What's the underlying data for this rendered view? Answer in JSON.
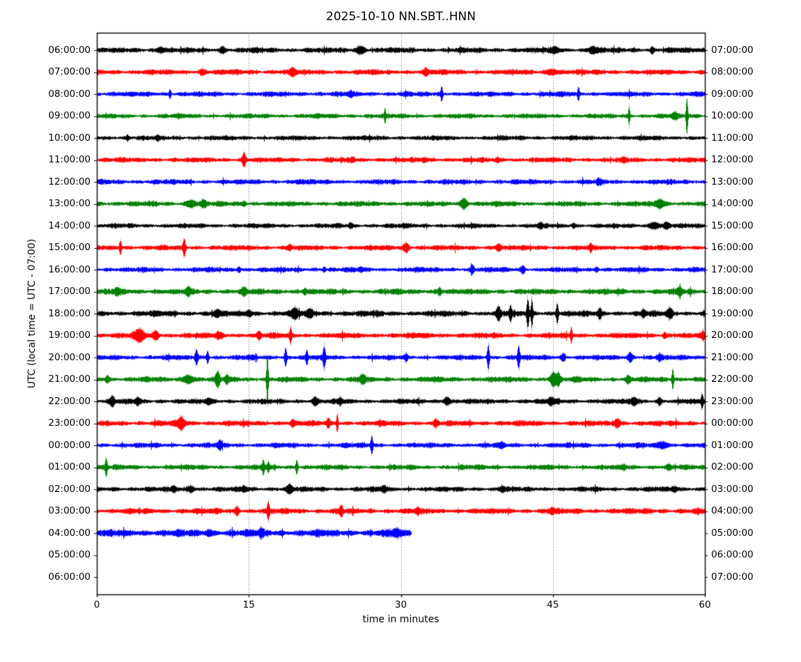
{
  "figure": {
    "title": "2025-10-10 NN.SBT..HNN",
    "xlabel": "time in minutes",
    "ylabel": "UTC (local time = UTC - 07:00)"
  },
  "chart_data": {
    "type": "line",
    "variant": "helicorder-dayplot",
    "title": "2025-10-10 NN.SBT..HNN",
    "date": "2025-10-10",
    "station_id": "NN.SBT..HNN",
    "xlabel": "time in minutes",
    "ylabel": "UTC (local time = UTC - 07:00)",
    "xlim": [
      0,
      60
    ],
    "x_ticks": [
      0,
      15,
      30,
      45,
      60
    ],
    "x_grid_minutes": [
      15,
      30,
      45
    ],
    "grid_style": "dotted-vertical",
    "minutes_per_row": 60,
    "trace_colors_cycle": [
      "#000000",
      "#ff0000",
      "#0000ff",
      "#008000"
    ],
    "rows": [
      {
        "left": "06:00:00",
        "right": "07:00:00",
        "color": "#000000",
        "trace": true,
        "start": 0,
        "end": 60,
        "noise": 3.1,
        "events": [
          [
            6.3,
            3,
            0.4
          ],
          [
            12.4,
            3,
            0.3
          ],
          [
            26.0,
            4,
            0.5
          ],
          [
            45.2,
            3,
            0.4
          ],
          [
            48.9,
            4,
            0.35
          ],
          [
            54.8,
            3,
            0.2
          ]
        ]
      },
      {
        "left": "07:00:00",
        "right": "08:00:00",
        "color": "#ff0000",
        "trace": true,
        "start": 0,
        "end": 60,
        "noise": 3.1,
        "events": [
          [
            10.4,
            3,
            0.3
          ],
          [
            19.3,
            3.5,
            0.3
          ],
          [
            32.4,
            3,
            0.25
          ],
          [
            44.9,
            3,
            0.6
          ]
        ]
      },
      {
        "left": "08:00:00",
        "right": "09:00:00",
        "color": "#0000ff",
        "trace": true,
        "start": 0,
        "end": 60,
        "noise": 2.9,
        "events": [
          [
            7.2,
            5,
            0.12
          ],
          [
            25,
            2,
            0.3
          ],
          [
            34,
            9,
            0.1
          ],
          [
            47.5,
            7,
            0.1
          ]
        ]
      },
      {
        "left": "09:00:00",
        "right": "10:00:00",
        "color": "#008000",
        "trace": true,
        "start": 0,
        "end": 60,
        "noise": 2.7,
        "events": [
          [
            28.4,
            8,
            0.08
          ],
          [
            52.5,
            12,
            0.09
          ],
          [
            57,
            3,
            0.3
          ],
          [
            58.2,
            23,
            0.1
          ]
        ]
      },
      {
        "left": "10:00:00",
        "right": "11:00:00",
        "color": "#000000",
        "trace": true,
        "start": 0,
        "end": 60,
        "noise": 2.7,
        "events": [
          [
            3,
            3,
            0.15
          ],
          [
            6,
            2,
            0.2
          ]
        ]
      },
      {
        "left": "11:00:00",
        "right": "12:00:00",
        "color": "#ff0000",
        "trace": true,
        "start": 0,
        "end": 60,
        "noise": 2.9,
        "events": [
          [
            14.5,
            8,
            0.18
          ],
          [
            25.2,
            2.5,
            0.2
          ],
          [
            32.3,
            2.5,
            0.2
          ],
          [
            39.5,
            2.5,
            0.2
          ],
          [
            52,
            2,
            0.2
          ]
        ]
      },
      {
        "left": "12:00:00",
        "right": "13:00:00",
        "color": "#0000ff",
        "trace": true,
        "start": 0,
        "end": 60,
        "noise": 2.9,
        "events": [
          [
            20,
            1.5,
            0.3
          ],
          [
            49.5,
            2.5,
            0.2
          ]
        ]
      },
      {
        "left": "13:00:00",
        "right": "14:00:00",
        "color": "#008000",
        "trace": true,
        "start": 0,
        "end": 60,
        "noise": 3.0,
        "events": [
          [
            9.3,
            4,
            0.5
          ],
          [
            10.5,
            3,
            0.3
          ],
          [
            14.5,
            3,
            0.2
          ],
          [
            36.2,
            6,
            0.35
          ],
          [
            55.5,
            5,
            0.4
          ]
        ]
      },
      {
        "left": "14:00:00",
        "right": "15:00:00",
        "color": "#000000",
        "trace": true,
        "start": 0,
        "end": 60,
        "noise": 2.7,
        "events": [
          [
            25,
            2.5,
            0.2
          ],
          [
            43.7,
            2.5,
            0.2
          ],
          [
            47,
            2.5,
            0.2
          ],
          [
            55,
            4,
            0.5
          ],
          [
            56.2,
            3,
            0.3
          ]
        ]
      },
      {
        "left": "15:00:00",
        "right": "16:00:00",
        "color": "#ff0000",
        "trace": true,
        "start": 0,
        "end": 60,
        "noise": 3.0,
        "events": [
          [
            2.3,
            9,
            0.12
          ],
          [
            8.6,
            11,
            0.14
          ],
          [
            19,
            3,
            0.2
          ],
          [
            30.5,
            5,
            0.3
          ],
          [
            39.6,
            4,
            0.25
          ],
          [
            48.7,
            3,
            0.15
          ]
        ]
      },
      {
        "left": "16:00:00",
        "right": "17:00:00",
        "color": "#0000ff",
        "trace": true,
        "start": 0,
        "end": 60,
        "noise": 2.9,
        "events": [
          [
            14,
            3.5,
            0.15
          ],
          [
            22.4,
            3,
            0.15
          ],
          [
            26,
            2,
            0.2
          ],
          [
            37,
            5,
            0.15
          ],
          [
            42,
            4.5,
            0.2
          ],
          [
            49.3,
            3,
            0.2
          ]
        ]
      },
      {
        "left": "17:00:00",
        "right": "18:00:00",
        "color": "#008000",
        "trace": true,
        "start": 0,
        "end": 60,
        "noise": 3.3,
        "events": [
          [
            2,
            4,
            0.3
          ],
          [
            9,
            3.5,
            0.3
          ],
          [
            14.5,
            4,
            0.25
          ],
          [
            20.5,
            3,
            0.2
          ],
          [
            33.8,
            4.5,
            0.2
          ],
          [
            57.5,
            4.5,
            0.25
          ]
        ]
      },
      {
        "left": "18:00:00",
        "right": "19:00:00",
        "color": "#000000",
        "trace": true,
        "start": 0,
        "end": 60,
        "noise": 3.4,
        "events": [
          [
            11.8,
            3.5,
            0.3
          ],
          [
            15,
            3.5,
            0.3
          ],
          [
            19.5,
            4.5,
            0.4
          ],
          [
            21,
            4.5,
            0.3
          ],
          [
            39.6,
            7,
            0.2
          ],
          [
            40.8,
            8,
            0.15
          ],
          [
            42.5,
            19,
            0.12
          ],
          [
            42.9,
            17,
            0.1
          ],
          [
            45.4,
            13,
            0.12
          ],
          [
            49.6,
            5,
            0.2
          ],
          [
            53.9,
            4,
            0.2
          ],
          [
            56.5,
            5,
            0.3
          ]
        ]
      },
      {
        "left": "19:00:00",
        "right": "20:00:00",
        "color": "#ff0000",
        "trace": true,
        "start": 0,
        "end": 60,
        "noise": 3.2,
        "events": [
          [
            4.2,
            7,
            0.5
          ],
          [
            5.8,
            5,
            0.3
          ],
          [
            12,
            3,
            0.3
          ],
          [
            16,
            3,
            0.2
          ],
          [
            19.1,
            9,
            0.12
          ],
          [
            46.8,
            9,
            0.1
          ],
          [
            56,
            3,
            0.2
          ],
          [
            59.8,
            4,
            0.15
          ]
        ]
      },
      {
        "left": "20:00:00",
        "right": "21:00:00",
        "color": "#0000ff",
        "trace": true,
        "start": 0,
        "end": 60,
        "noise": 2.9,
        "events": [
          [
            9.8,
            9,
            0.15
          ],
          [
            10.9,
            8,
            0.12
          ],
          [
            18.6,
            11,
            0.12
          ],
          [
            20.7,
            8,
            0.12
          ],
          [
            22.4,
            13,
            0.13
          ],
          [
            30.5,
            4,
            0.15
          ],
          [
            38.6,
            16,
            0.12
          ],
          [
            41.6,
            14,
            0.13
          ],
          [
            46,
            4,
            0.2
          ],
          [
            52.6,
            5,
            0.25
          ],
          [
            55.5,
            4,
            0.2
          ]
        ]
      },
      {
        "left": "21:00:00",
        "right": "22:00:00",
        "color": "#008000",
        "trace": true,
        "start": 0,
        "end": 60,
        "noise": 3.1,
        "events": [
          [
            1,
            4,
            0.2
          ],
          [
            9,
            5,
            0.5
          ],
          [
            11.9,
            9,
            0.2
          ],
          [
            12.8,
            5,
            0.2
          ],
          [
            16.8,
            30,
            0.1
          ],
          [
            26.2,
            5,
            0.3
          ],
          [
            45,
            9,
            0.3
          ],
          [
            45.5,
            7,
            0.2
          ],
          [
            52.4,
            4,
            0.2
          ],
          [
            56.8,
            13,
            0.1
          ]
        ]
      },
      {
        "left": "22:00:00",
        "right": "23:00:00",
        "color": "#000000",
        "trace": true,
        "start": 0,
        "end": 60,
        "noise": 2.9,
        "events": [
          [
            1.5,
            5,
            0.25
          ],
          [
            4,
            4,
            0.25
          ],
          [
            11,
            3,
            0.3
          ],
          [
            21.5,
            4,
            0.3
          ],
          [
            24,
            4,
            0.2
          ],
          [
            34.5,
            5,
            0.3
          ],
          [
            44.8,
            4,
            0.3
          ],
          [
            53,
            4.5,
            0.3
          ],
          [
            55.5,
            4,
            0.2
          ],
          [
            59.7,
            9,
            0.12
          ]
        ]
      },
      {
        "left": "23:00:00",
        "right": "00:00:00",
        "color": "#ff0000",
        "trace": true,
        "start": 0,
        "end": 60,
        "noise": 3.2,
        "events": [
          [
            8.3,
            7,
            0.35
          ],
          [
            19.3,
            3.5,
            0.2
          ],
          [
            22.8,
            5,
            0.15
          ],
          [
            23.7,
            11,
            0.1
          ],
          [
            33.4,
            4,
            0.2
          ],
          [
            51.3,
            5,
            0.3
          ]
        ]
      },
      {
        "left": "00:00:00",
        "right": "01:00:00",
        "color": "#0000ff",
        "trace": true,
        "start": 0,
        "end": 60,
        "noise": 2.9,
        "events": [
          [
            12.1,
            5,
            0.2
          ],
          [
            27.1,
            11,
            0.12
          ],
          [
            40,
            2.5,
            0.2
          ],
          [
            55.8,
            4,
            0.5
          ]
        ]
      },
      {
        "left": "01:00:00",
        "right": "02:00:00",
        "color": "#008000",
        "trace": true,
        "start": 0,
        "end": 60,
        "noise": 2.9,
        "events": [
          [
            0.9,
            11,
            0.12
          ],
          [
            16.4,
            8,
            0.13
          ],
          [
            16.9,
            6,
            0.12
          ],
          [
            19.7,
            9,
            0.12
          ],
          [
            52,
            2.5,
            0.2
          ],
          [
            56.4,
            2.5,
            0.2
          ]
        ]
      },
      {
        "left": "02:00:00",
        "right": "03:00:00",
        "color": "#000000",
        "trace": true,
        "start": 0,
        "end": 60,
        "noise": 2.9,
        "events": [
          [
            7.6,
            3,
            0.25
          ],
          [
            9.3,
            3.5,
            0.3
          ],
          [
            14.5,
            3,
            0.25
          ],
          [
            19,
            4,
            0.3
          ],
          [
            28.3,
            3,
            0.3
          ],
          [
            40,
            2.5,
            0.3
          ],
          [
            57,
            3,
            0.25
          ]
        ]
      },
      {
        "left": "03:00:00",
        "right": "04:00:00",
        "color": "#ff0000",
        "trace": true,
        "start": 0,
        "end": 60,
        "noise": 3.3,
        "events": [
          [
            13.8,
            5,
            0.2
          ],
          [
            16.9,
            10,
            0.12
          ],
          [
            24.1,
            6,
            0.15
          ],
          [
            31.6,
            3,
            0.2
          ],
          [
            44.9,
            3,
            0.25
          ]
        ]
      },
      {
        "left": "04:00:00",
        "right": "05:00:00",
        "color": "#0000ff",
        "trace": true,
        "start": 0,
        "end": 31,
        "noise": 4.3,
        "events": [
          [
            11,
            3,
            0.3
          ],
          [
            16.2,
            4,
            0.2
          ],
          [
            29.5,
            3,
            0.4
          ]
        ]
      },
      {
        "left": "05:00:00",
        "right": "06:00:00",
        "color": null,
        "trace": false,
        "start": 0,
        "end": 0,
        "noise": 0,
        "events": []
      },
      {
        "left": "06:00:00",
        "right": "07:00:00",
        "color": null,
        "trace": false,
        "start": 0,
        "end": 0,
        "noise": 0,
        "events": []
      }
    ]
  }
}
